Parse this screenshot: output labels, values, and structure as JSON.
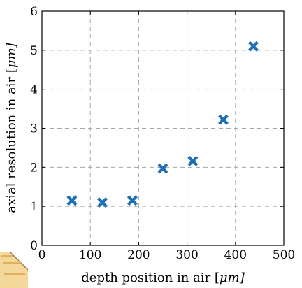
{
  "chart_data": {
    "type": "scatter",
    "title": "",
    "xlabel_text": "depth position in air [",
    "xlabel_unit": "μm]",
    "ylabel_text": "axial resolution in air [",
    "ylabel_unit": "μm]",
    "xlim": [
      0,
      500
    ],
    "ylim": [
      0,
      6
    ],
    "xticks": [
      0,
      100,
      200,
      300,
      400,
      500
    ],
    "yticks": [
      0,
      1,
      2,
      3,
      4,
      5,
      6
    ],
    "grid": true,
    "marker": "x",
    "marker_color": "#1f6fb5",
    "series": [
      {
        "points": [
          {
            "x": 62,
            "y": 1.15
          },
          {
            "x": 125,
            "y": 1.1
          },
          {
            "x": 187,
            "y": 1.15
          },
          {
            "x": 250,
            "y": 1.97
          },
          {
            "x": 312,
            "y": 2.16
          },
          {
            "x": 375,
            "y": 3.22
          },
          {
            "x": 437,
            "y": 5.1
          }
        ]
      }
    ]
  }
}
